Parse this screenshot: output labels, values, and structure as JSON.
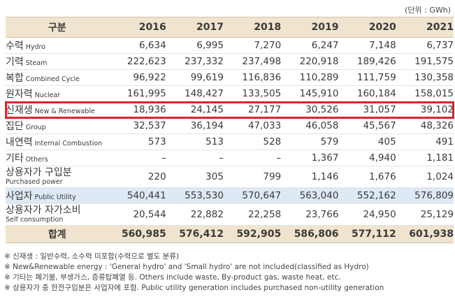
{
  "unit": "(단위 : GWh)",
  "header": {
    "label": "구분",
    "years": [
      "2016",
      "2017",
      "2018",
      "2019",
      "2020",
      "2021"
    ]
  },
  "rows": [
    {
      "ko": "수력",
      "en": "Hydro",
      "values": [
        "6,634",
        "6,995",
        "7,270",
        "6,247",
        "7,148",
        "6,737"
      ]
    },
    {
      "ko": "기력",
      "en": "Steam",
      "values": [
        "222,623",
        "237,332",
        "237,498",
        "220,918",
        "189,426",
        "191,575"
      ]
    },
    {
      "ko": "복합",
      "en": "Combined Cycle",
      "values": [
        "96,922",
        "99,619",
        "116,836",
        "110,289",
        "111,759",
        "130,358"
      ]
    },
    {
      "ko": "원자력",
      "en": "Nuclear",
      "values": [
        "161,995",
        "148,427",
        "133,505",
        "145,910",
        "160,184",
        "158,015"
      ]
    },
    {
      "ko": "신재생",
      "en": "New & Renewable",
      "values": [
        "18,936",
        "24,145",
        "27,177",
        "30,526",
        "31,057",
        "39,102"
      ]
    },
    {
      "ko": "집단",
      "en": "Group",
      "values": [
        "32,537",
        "36,194",
        "47,033",
        "46,058",
        "45,567",
        "48,326"
      ]
    },
    {
      "ko": "내연력",
      "en": "Internal Combustion",
      "values": [
        "573",
        "513",
        "528",
        "579",
        "405",
        "491"
      ]
    },
    {
      "ko": "기타",
      "en": "Others",
      "values": [
        "–",
        "–",
        "–",
        "1,367",
        "4,940",
        "1,181"
      ]
    },
    {
      "ko": "상용자가 구입분",
      "en": "Purchased power",
      "values": [
        "220",
        "305",
        "799",
        "1,146",
        "1,676",
        "1,024"
      ]
    },
    {
      "ko": "사업자",
      "en": "Public Utility",
      "values": [
        "540,441",
        "553,530",
        "570,647",
        "563,040",
        "552,162",
        "576,809"
      ]
    },
    {
      "ko": "상용자가 자가소비",
      "en": "Self consumption",
      "values": [
        "20,544",
        "22,882",
        "22,258",
        "23,766",
        "24,950",
        "25,129"
      ]
    }
  ],
  "total": {
    "label": "합계",
    "values": [
      "560,985",
      "576,412",
      "592,905",
      "586,806",
      "577,112",
      "601,938"
    ]
  },
  "notes": [
    "※ 신재생 : 일반수력, 소수력 미포함(수력으로 별도 분류)",
    "※ New&Renewable energy : 'General hydro' and 'Small hydro' are not included(classified as Hydro)",
    "※ 기타는 폐기물, 부생가스, 증류탑폐열 등.  Others include waste, By-product gas, waste heat, etc.",
    "※ 상용자가 중 한전구입분은 사업자에 포함.  Public utility generation includes purchased non-utility generation"
  ],
  "colors": {
    "header_bg": "#f0e4ce",
    "highlight_border": "#e32229",
    "utility_bg": "#dde9f4"
  }
}
